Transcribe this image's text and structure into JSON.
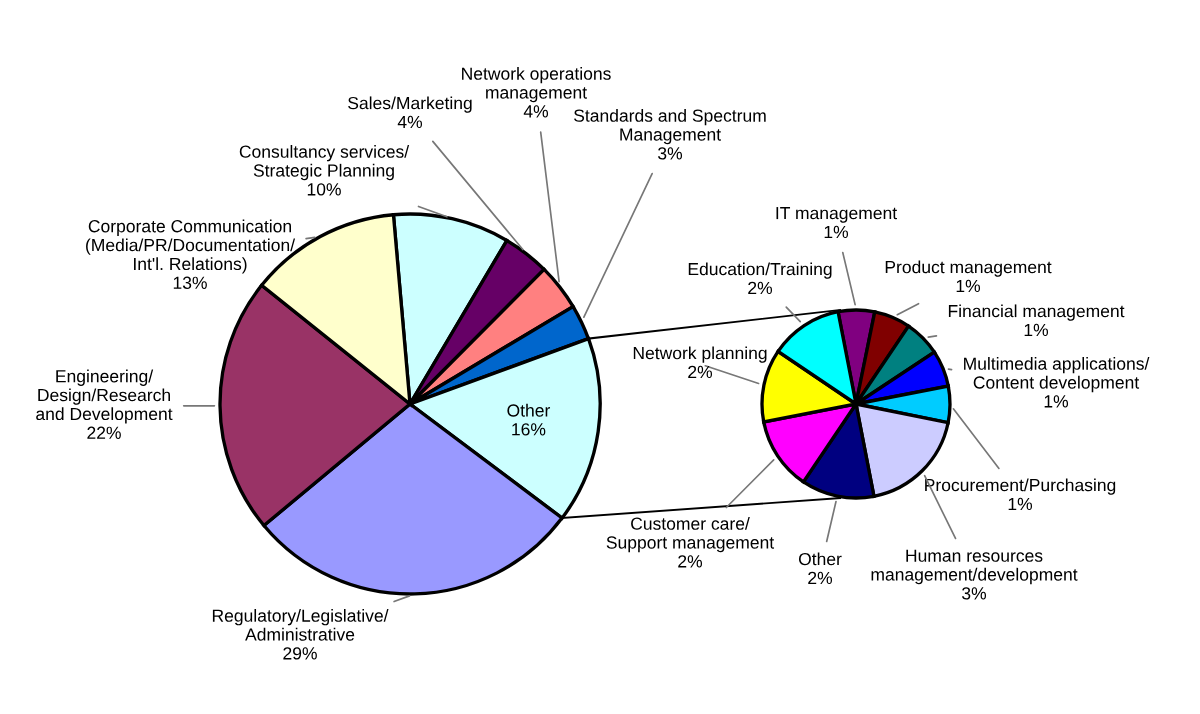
{
  "chart_data": [
    {
      "type": "pie",
      "categories": [
        "Consultancy services/\nStrategic Planning",
        "Sales/Marketing",
        "Network operations\nmanagement",
        "Standards and Spectrum\nManagement",
        "Other",
        "Regulatory/Legislative/\nAdministrative",
        "Engineering/\nDesign/Research\nand Development",
        "Corporate Communication\n(Media/PR/Documentation/\nInt'l. Relations)"
      ],
      "values": [
        10,
        4,
        4,
        3,
        16,
        29,
        22,
        13
      ],
      "value_labels": [
        "10%",
        "4%",
        "4%",
        "3%",
        "16%",
        "29%",
        "22%",
        "13%"
      ],
      "colors": [
        "#ccffff",
        "#660066",
        "#ff8080",
        "#0066cc",
        "#ccffff",
        "#9999ff",
        "#993366",
        "#ffffcc"
      ]
    },
    {
      "type": "pie",
      "categories": [
        "IT management",
        "Product management",
        "Financial management",
        "Multimedia applications/\nContent development",
        "Procurement/Purchasing",
        "Human resources\nmanagement/development",
        "Other",
        "Customer care/\nSupport management",
        "Network planning",
        "Education/Training"
      ],
      "values": [
        1,
        1,
        1,
        1,
        1,
        3,
        2,
        2,
        2,
        2
      ],
      "value_labels": [
        "1%",
        "1%",
        "1%",
        "1%",
        "1%",
        "3%",
        "2%",
        "2%",
        "2%",
        "2%"
      ],
      "colors": [
        "#800080",
        "#800000",
        "#008080",
        "#0000ff",
        "#00ccff",
        "#ccccff",
        "#000080",
        "#ff00ff",
        "#ffff00",
        "#00ffff"
      ]
    }
  ]
}
